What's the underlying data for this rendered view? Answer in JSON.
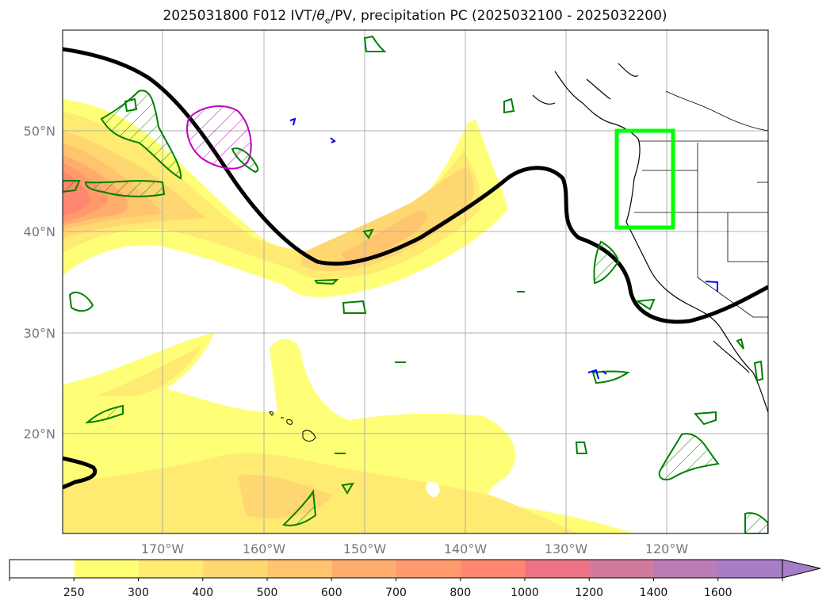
{
  "title": {
    "pre": "2025031800 F012 IVT/",
    "theta": "θ",
    "sub": "e",
    "post": "/PV, precipitation PC (2025032100 - 2025032200)"
  },
  "map": {
    "lat_labels": [
      "50°N",
      "40°N",
      "30°N",
      "20°N"
    ],
    "lon_labels": [
      "170°W",
      "160°W",
      "150°W",
      "140°W",
      "130°W",
      "120°W"
    ],
    "colors": {
      "land_outline": "#000000",
      "pv_contour": "#000000",
      "theta_e_contour": "#008000",
      "blue_contour": "#0000ff",
      "magenta_contour": "#c000c0",
      "focus_box": "#00ff00",
      "grid": "#b0b0b0"
    }
  },
  "colorbar": {
    "ticks": [
      "250",
      "300",
      "400",
      "500",
      "600",
      "700",
      "800",
      "1000",
      "1200",
      "1400",
      "1600"
    ],
    "colors": [
      "#ffffff",
      "#ffff77",
      "#ffea72",
      "#ffd770",
      "#ffc46e",
      "#ffad6c",
      "#ff9a6c",
      "#ff8670",
      "#ed7384",
      "#d3799c",
      "#bb7bb6",
      "#a67dc6"
    ]
  }
}
